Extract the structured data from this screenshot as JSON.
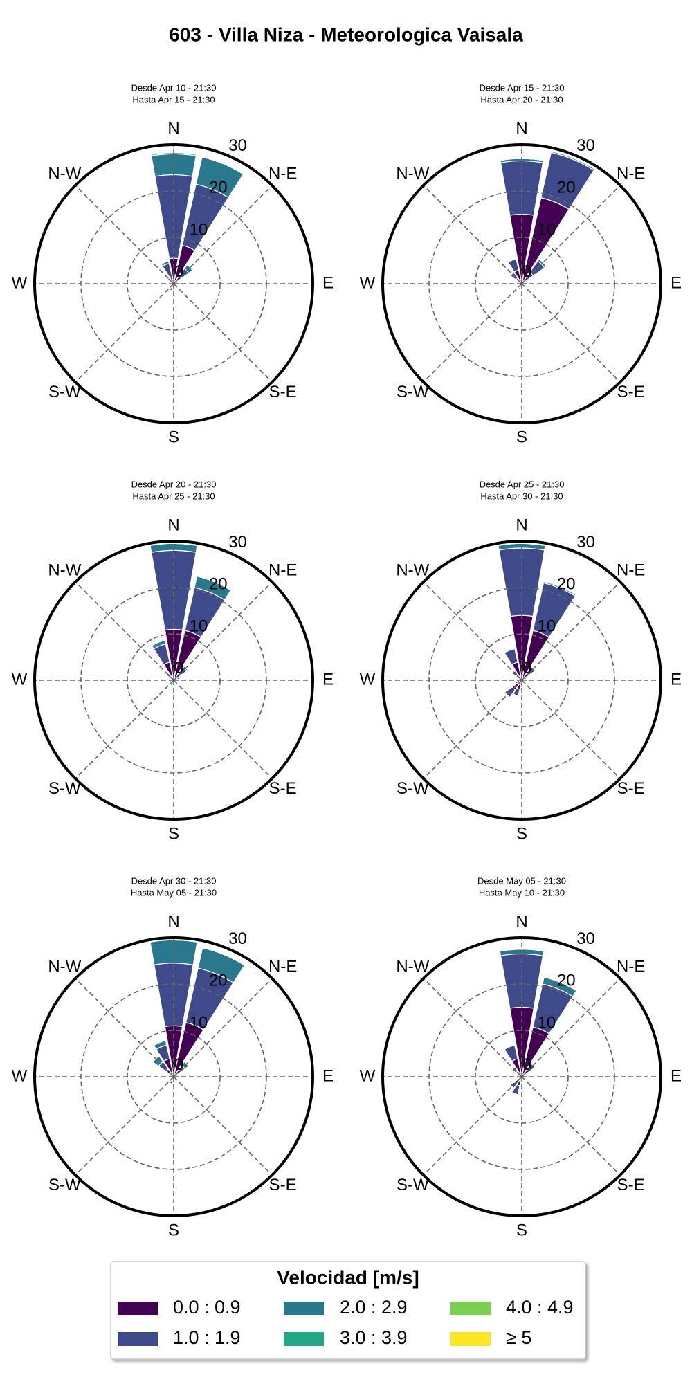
{
  "title": "603 - Villa Niza - Meteorologica Vaisala",
  "legend_title": "Velocidad [m/s]",
  "chart_data": [
    {
      "type": "windrose",
      "subtitle": [
        "Desde Apr 10 - 21:30",
        "Hasta Apr 15 - 21:30"
      ],
      "categories": [
        "N",
        null,
        "N-E",
        null,
        "E",
        null,
        "S-E",
        null,
        "S",
        null,
        "S-W",
        null,
        "W",
        null,
        "N-W",
        null
      ],
      "rlim": [
        0,
        30
      ],
      "rticks": [
        0,
        10,
        20,
        30
      ],
      "series": [
        {
          "name": "0.0 : 0.9",
          "color": "#440154",
          "values": [
            5.5,
            8.5,
            2,
            0.5,
            0.3,
            0.2,
            0.2,
            0.3,
            0.5,
            0.8,
            0.5,
            0.3,
            0.3,
            0.5,
            0.8,
            1.5
          ]
        },
        {
          "name": "1.0 : 1.9",
          "color": "#3e4a89",
          "values": [
            18,
            13.5,
            2,
            0.5,
            0,
            0,
            0,
            0,
            0.3,
            0.8,
            0.3,
            0,
            0,
            0.3,
            0.8,
            3
          ]
        },
        {
          "name": "2.0 : 2.9",
          "color": "#2a788e",
          "values": [
            4.5,
            6,
            1,
            0,
            0,
            0,
            0,
            0,
            0,
            0,
            0,
            0,
            0,
            0,
            0,
            0.5
          ]
        },
        {
          "name": "3.0 : 3.9",
          "color": "#22a884",
          "values": [
            0.3,
            0,
            0,
            0,
            0,
            0,
            0,
            0,
            0,
            0,
            0,
            0,
            0,
            0,
            0,
            0
          ]
        },
        {
          "name": "4.0 : 4.9",
          "color": "#7ad151",
          "values": [
            0,
            0,
            0,
            0,
            0,
            0,
            0,
            0,
            0,
            0,
            0,
            0,
            0,
            0,
            0,
            0
          ]
        },
        {
          "name": "≥ 5",
          "color": "#fde725",
          "values": [
            0,
            0,
            0,
            0,
            0,
            0,
            0,
            0,
            0,
            0,
            0,
            0,
            0,
            0,
            0,
            0
          ]
        }
      ]
    },
    {
      "type": "windrose",
      "subtitle": [
        "Desde Apr 15 - 21:30",
        "Hasta Apr 20 - 21:30"
      ],
      "categories": [
        "N",
        null,
        "N-E",
        null,
        "E",
        null,
        "S-E",
        null,
        "S",
        null,
        "S-W",
        null,
        "W",
        null,
        "N-W",
        null
      ],
      "rlim": [
        0,
        30
      ],
      "rticks": [
        0,
        10,
        20,
        30
      ],
      "series": [
        {
          "name": "0.0 : 0.9",
          "color": "#440154",
          "values": [
            15,
            19,
            3,
            0.8,
            0.3,
            0.2,
            0.2,
            0.3,
            0.5,
            0.8,
            0.5,
            0.3,
            0.3,
            0.8,
            1.5,
            3
          ]
        },
        {
          "name": "1.0 : 1.9",
          "color": "#3e4a89",
          "values": [
            11.5,
            10,
            3,
            0.5,
            0,
            0,
            0,
            0,
            0,
            0.5,
            0,
            0,
            0,
            0,
            1.5,
            2.5
          ]
        },
        {
          "name": "2.0 : 2.9",
          "color": "#2a788e",
          "values": [
            0.5,
            0.3,
            0.5,
            0,
            0,
            0,
            0,
            0,
            0,
            0,
            0,
            0,
            0,
            0,
            0,
            0
          ]
        },
        {
          "name": "3.0 : 3.9",
          "color": "#22a884",
          "values": [
            0,
            0,
            0,
            0,
            0,
            0,
            0,
            0,
            0,
            0,
            0,
            0,
            0,
            0,
            0,
            0
          ]
        },
        {
          "name": "4.0 : 4.9",
          "color": "#7ad151",
          "values": [
            0,
            0,
            0,
            0,
            0,
            0,
            0,
            0,
            0,
            0,
            0,
            0,
            0,
            0,
            0,
            0
          ]
        },
        {
          "name": "≥ 5",
          "color": "#fde725",
          "values": [
            0,
            0,
            0,
            0,
            0,
            0,
            0,
            0,
            0,
            0,
            0,
            0,
            0,
            0,
            0,
            0
          ]
        }
      ]
    },
    {
      "type": "windrose",
      "subtitle": [
        "Desde Apr 20 - 21:30",
        "Hasta Apr 25 - 21:30"
      ],
      "categories": [
        "N",
        null,
        "N-E",
        null,
        "E",
        null,
        "S-E",
        null,
        "S",
        null,
        "S-W",
        null,
        "W",
        null,
        "N-W",
        null
      ],
      "rlim": [
        0,
        30
      ],
      "rticks": [
        0,
        10,
        20,
        30
      ],
      "series": [
        {
          "name": "0.0 : 0.9",
          "color": "#440154",
          "values": [
            11,
            11,
            2,
            0.8,
            0.3,
            0.2,
            0.2,
            0.3,
            0.5,
            0.8,
            0.5,
            0.3,
            0.3,
            0.5,
            1,
            4
          ]
        },
        {
          "name": "1.0 : 1.9",
          "color": "#3e4a89",
          "values": [
            17,
            9.5,
            1.5,
            0.5,
            0,
            0,
            0,
            0,
            0.3,
            0.5,
            0,
            0,
            0,
            0,
            0.8,
            4
          ]
        },
        {
          "name": "2.0 : 2.9",
          "color": "#2a788e",
          "values": [
            1.5,
            2.5,
            0.3,
            0,
            0,
            0,
            0,
            0,
            0,
            0,
            0,
            0,
            0,
            0,
            0,
            0.8
          ]
        },
        {
          "name": "3.0 : 3.9",
          "color": "#22a884",
          "values": [
            0,
            0,
            0,
            0,
            0,
            0,
            0,
            0,
            0,
            0,
            0,
            0,
            0,
            0,
            0,
            0
          ]
        },
        {
          "name": "4.0 : 4.9",
          "color": "#7ad151",
          "values": [
            0,
            0,
            0,
            0,
            0,
            0,
            0,
            0,
            0,
            0,
            0,
            0,
            0,
            0,
            0,
            0
          ]
        },
        {
          "name": "≥ 5",
          "color": "#fde725",
          "values": [
            0,
            0,
            0,
            0,
            0,
            0,
            0,
            0,
            0,
            0,
            0,
            0,
            0,
            0,
            0,
            0
          ]
        }
      ]
    },
    {
      "type": "windrose",
      "subtitle": [
        "Desde Apr 25 - 21:30",
        "Hasta Apr 30 - 21:30"
      ],
      "categories": [
        "N",
        null,
        "N-E",
        null,
        "E",
        null,
        "S-E",
        null,
        "S",
        null,
        "S-W",
        null,
        "W",
        null,
        "N-W",
        null
      ],
      "rlim": [
        0,
        30
      ],
      "rticks": [
        0,
        10,
        20,
        30
      ],
      "series": [
        {
          "name": "0.0 : 0.9",
          "color": "#440154",
          "values": [
            14,
            11,
            2,
            0.8,
            0.3,
            0.2,
            0.2,
            0.3,
            1,
            2,
            2.5,
            1,
            0.5,
            0.8,
            1.5,
            4
          ]
        },
        {
          "name": "1.0 : 1.9",
          "color": "#3e4a89",
          "values": [
            14.5,
            10.5,
            1.5,
            0.3,
            0,
            0,
            0,
            0,
            0.5,
            1.5,
            2,
            0.5,
            0,
            0,
            1,
            3
          ]
        },
        {
          "name": "2.0 : 2.9",
          "color": "#2a788e",
          "values": [
            1,
            0.3,
            0,
            0,
            0,
            0,
            0,
            0,
            0,
            0,
            0,
            0,
            0,
            0,
            0,
            0
          ]
        },
        {
          "name": "3.0 : 3.9",
          "color": "#22a884",
          "values": [
            0,
            0,
            0,
            0,
            0,
            0,
            0,
            0,
            0,
            0,
            0,
            0,
            0,
            0,
            0,
            0
          ]
        },
        {
          "name": "4.0 : 4.9",
          "color": "#7ad151",
          "values": [
            0,
            0,
            0,
            0,
            0,
            0,
            0,
            0,
            0,
            0,
            0,
            0,
            0,
            0,
            0,
            0
          ]
        },
        {
          "name": "≥ 5",
          "color": "#fde725",
          "values": [
            0,
            0,
            0,
            0,
            0,
            0,
            0,
            0,
            0,
            0,
            0,
            0,
            0,
            0,
            0,
            0
          ]
        }
      ]
    },
    {
      "type": "windrose",
      "subtitle": [
        "Desde Apr 30 - 21:30",
        "Hasta May 05 - 21:30"
      ],
      "categories": [
        "N",
        null,
        "N-E",
        null,
        "E",
        null,
        "S-E",
        null,
        "S",
        null,
        "S-W",
        null,
        "W",
        null,
        "N-W",
        null
      ],
      "rlim": [
        0,
        30
      ],
      "rticks": [
        0,
        10,
        20,
        30
      ],
      "series": [
        {
          "name": "0.0 : 0.9",
          "color": "#440154",
          "values": [
            11,
            12,
            2,
            0.8,
            0.3,
            0.2,
            0.2,
            0.3,
            0.5,
            0.8,
            0.8,
            0.3,
            0.3,
            0.8,
            2,
            4
          ]
        },
        {
          "name": "1.0 : 1.9",
          "color": "#3e4a89",
          "values": [
            13.5,
            12,
            1,
            0.3,
            0,
            0,
            0,
            0,
            0.3,
            0.8,
            0.5,
            0,
            0,
            0,
            2,
            3
          ]
        },
        {
          "name": "2.0 : 2.9",
          "color": "#2a788e",
          "values": [
            5,
            4.5,
            1,
            0,
            0,
            0,
            0,
            0,
            0,
            0,
            0,
            0,
            0,
            0,
            1.5,
            1
          ]
        },
        {
          "name": "3.0 : 3.9",
          "color": "#22a884",
          "values": [
            0,
            0,
            0,
            0,
            0,
            0,
            0,
            0,
            0,
            0,
            0,
            0,
            0,
            0,
            0,
            0
          ]
        },
        {
          "name": "4.0 : 4.9",
          "color": "#7ad151",
          "values": [
            0,
            0,
            0,
            0,
            0,
            0,
            0,
            0,
            0,
            0,
            0,
            0,
            0,
            0,
            0,
            0
          ]
        },
        {
          "name": "≥ 5",
          "color": "#fde725",
          "values": [
            0,
            0,
            0,
            0,
            0,
            0,
            0,
            0,
            0,
            0,
            0,
            0,
            0,
            0,
            0,
            0
          ]
        }
      ]
    },
    {
      "type": "windrose",
      "subtitle": [
        "Desde May 05 - 21:30",
        "Hasta May 10 - 21:30"
      ],
      "categories": [
        "N",
        null,
        "N-E",
        null,
        "E",
        null,
        "S-E",
        null,
        "S",
        null,
        "S-W",
        null,
        "W",
        null,
        "N-W",
        null
      ],
      "rlim": [
        0,
        30
      ],
      "rticks": [
        0,
        10,
        20,
        30
      ],
      "series": [
        {
          "name": "0.0 : 0.9",
          "color": "#440154",
          "values": [
            15,
            11,
            2,
            0.8,
            0.3,
            0.2,
            0.2,
            0.3,
            0.8,
            2,
            2,
            0.8,
            0.5,
            0.8,
            1.5,
            4
          ]
        },
        {
          "name": "1.0 : 1.9",
          "color": "#3e4a89",
          "values": [
            11.5,
            9.5,
            1.5,
            0.3,
            0,
            0,
            0,
            0,
            0.5,
            2,
            1,
            0,
            0,
            0,
            1,
            3
          ]
        },
        {
          "name": "2.0 : 2.9",
          "color": "#2a788e",
          "values": [
            1,
            1.5,
            0,
            0,
            0,
            0,
            0,
            0,
            0,
            0,
            0,
            0,
            0,
            0,
            0,
            0
          ]
        },
        {
          "name": "3.0 : 3.9",
          "color": "#22a884",
          "values": [
            0,
            0,
            0,
            0,
            0,
            0,
            0,
            0,
            0,
            0,
            0,
            0,
            0,
            0,
            0,
            0
          ]
        },
        {
          "name": "4.0 : 4.9",
          "color": "#7ad151",
          "values": [
            0,
            0,
            0,
            0,
            0,
            0,
            0,
            0,
            0,
            0,
            0,
            0,
            0,
            0,
            0,
            0
          ]
        },
        {
          "name": "≥ 5",
          "color": "#fde725",
          "values": [
            0,
            0,
            0,
            0,
            0,
            0,
            0,
            0,
            0,
            0,
            0,
            0,
            0,
            0,
            0,
            0
          ]
        }
      ]
    }
  ]
}
